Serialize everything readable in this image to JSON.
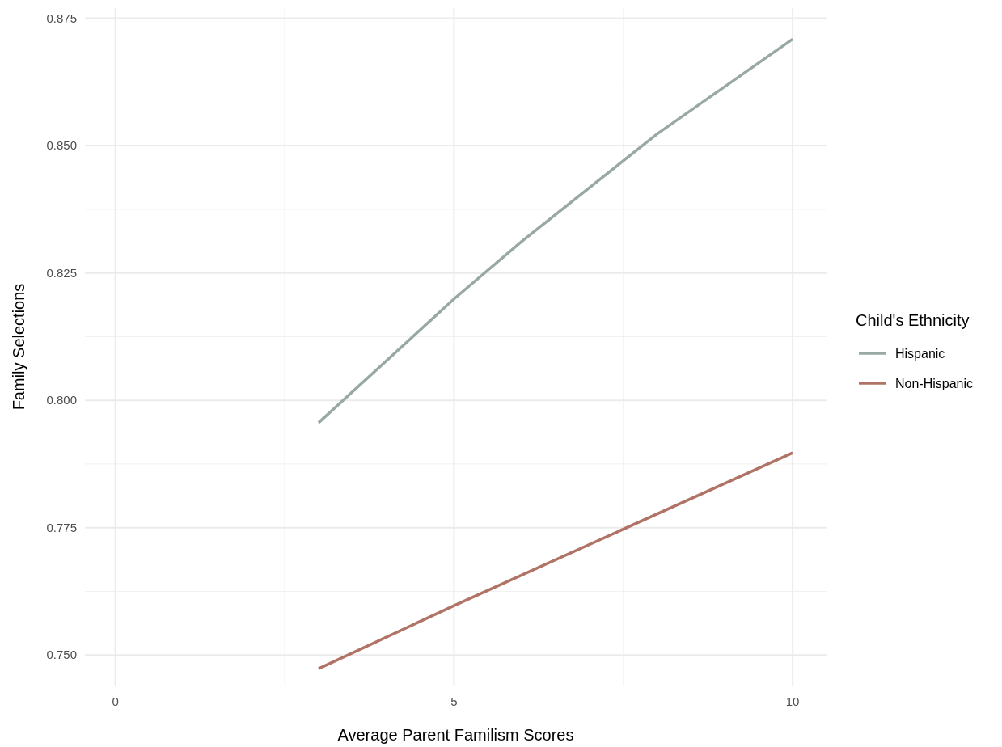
{
  "chart_data": {
    "type": "line",
    "xlabel": "Average Parent Familism Scores",
    "ylabel": "Family Selections",
    "legend_title": "Child's Ethnicity",
    "legend": "right",
    "xlim": [
      -0.45,
      10.5
    ],
    "xticks": [
      0,
      5,
      10
    ],
    "ylim": [
      0.744,
      0.877
    ],
    "yticks": [
      {
        "value": 0.75,
        "label": "0.750"
      },
      {
        "value": 0.775,
        "label": "0.775"
      },
      {
        "value": 0.8,
        "label": "0.800"
      },
      {
        "value": 0.825,
        "label": "0.825"
      },
      {
        "value": 0.85,
        "label": "0.850"
      },
      {
        "value": 0.875,
        "label": "0.875"
      }
    ],
    "grid": true,
    "series": [
      {
        "name": "Hispanic",
        "color": "#98a9a2",
        "x": [
          3,
          5,
          6,
          8,
          10
        ],
        "values": [
          0.7956,
          0.8199,
          0.8312,
          0.8523,
          0.8709
        ]
      },
      {
        "name": "Non-Hispanic",
        "color": "#b07366",
        "x": [
          3,
          5,
          10
        ],
        "values": [
          0.7473,
          0.7597,
          0.7897
        ]
      }
    ]
  }
}
